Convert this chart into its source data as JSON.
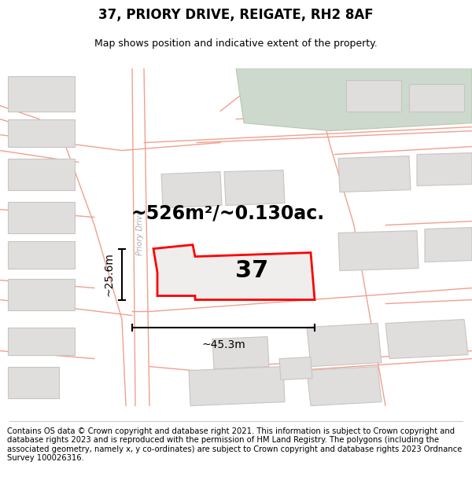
{
  "title": "37, PRIORY DRIVE, REIGATE, RH2 8AF",
  "subtitle": "Map shows position and indicative extent of the property.",
  "area_label": "~526m²/~0.130ac.",
  "number_label": "37",
  "width_label": "~45.3m",
  "height_label": "~25.6m",
  "footer_text": "Contains OS data © Crown copyright and database right 2021. This information is subject to Crown copyright and database rights 2023 and is reproduced with the permission of HM Land Registry. The polygons (including the associated geometry, namely x, y co-ordinates) are subject to Crown copyright and database rights 2023 Ordnance Survey 100026316.",
  "map_bg": "#f7f6f4",
  "road_stroke": "#f0a090",
  "road_lw": 1.0,
  "building_fill": "#e0dedd",
  "building_stroke": "#c8c5c2",
  "green_fill": "#ccd9cc",
  "green_stroke": "#b8c8b0",
  "prop_fill": "#f0eeec",
  "prop_stroke": "#ff0000",
  "prop_lw": 2.0,
  "title_fontsize": 12,
  "subtitle_fontsize": 9,
  "area_fontsize": 17,
  "number_fontsize": 22,
  "measure_fontsize": 10,
  "road_label_fontsize": 7,
  "footer_fontsize": 7.2
}
